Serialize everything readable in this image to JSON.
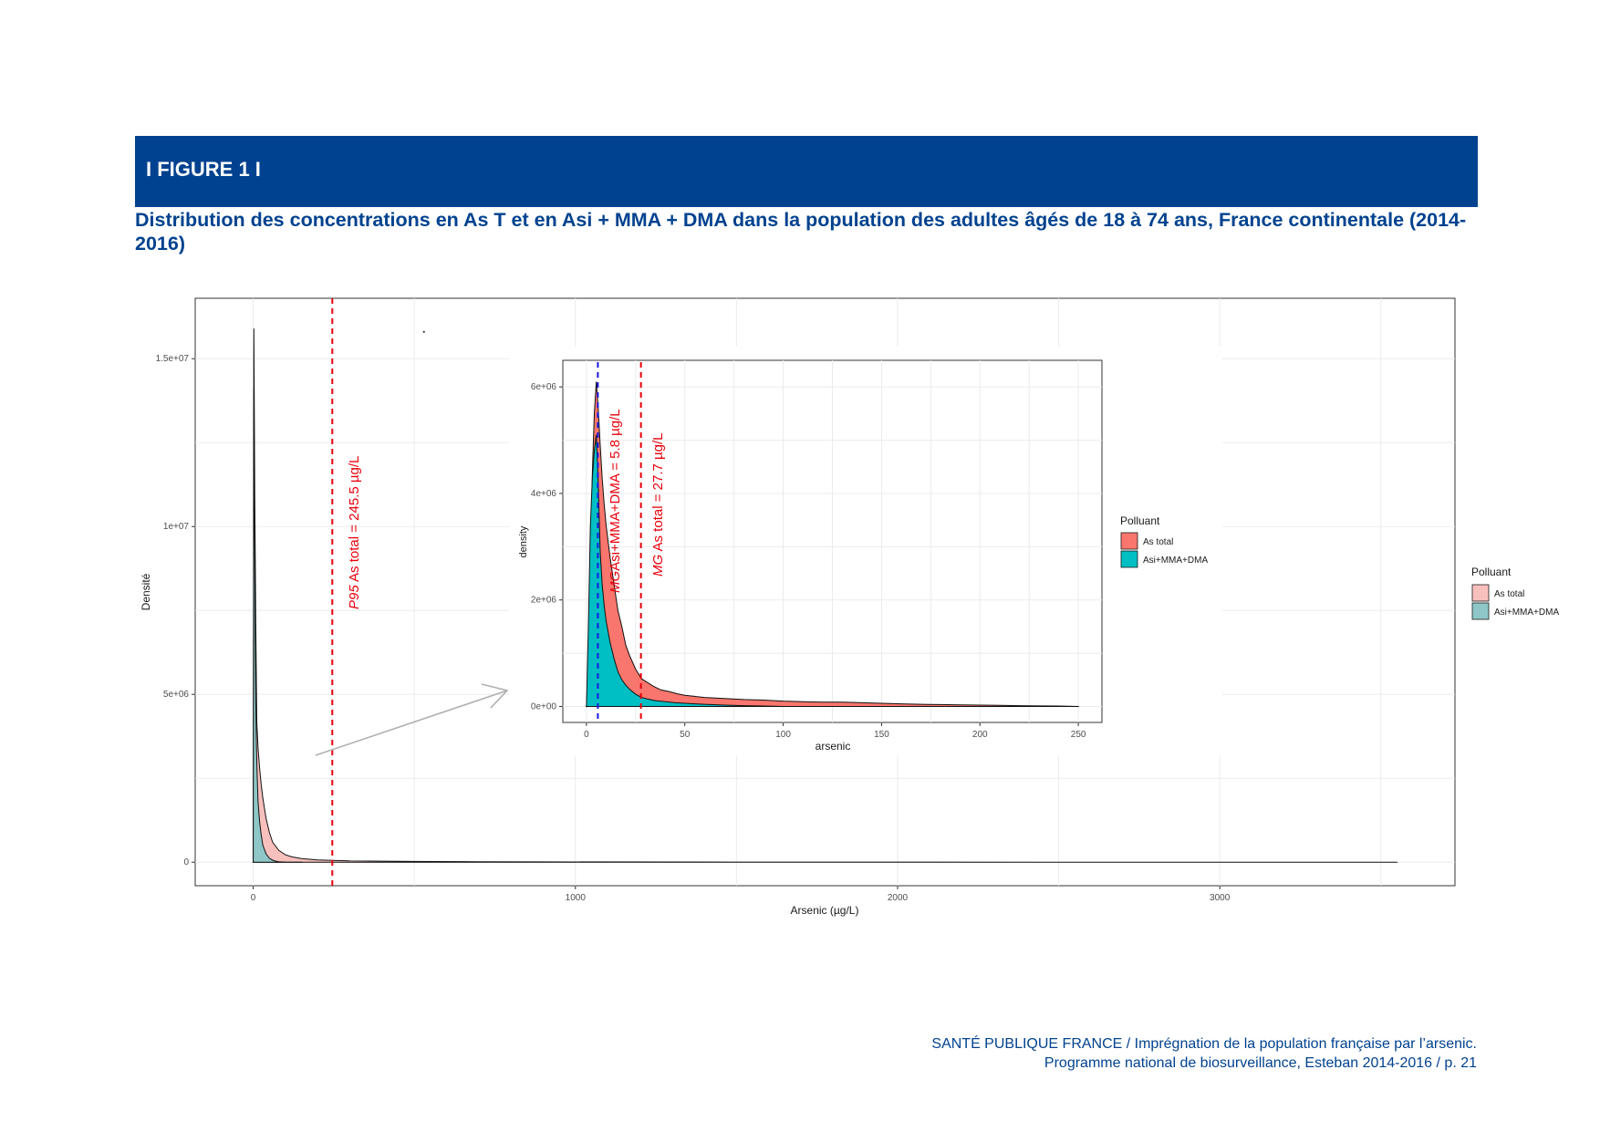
{
  "header": {
    "figure_label": "I FIGURE 1 I",
    "subtitle": "Distribution des concentrations en As T et en Asi + MMA + DMA dans la population des adultes âgés de 18 à 74 ans, France continentale (2014-2016)"
  },
  "colors": {
    "banner": "#00428f",
    "as_total_main": "#f8c0bd",
    "asi_main": "#8fc7c8",
    "as_total_inset": "#f8766d",
    "asi_inset": "#00bfc4",
    "ref_line_red": "#e8000b",
    "ref_line_blue": "#1a1adf"
  },
  "chart_data": [
    {
      "type": "area",
      "panel": "main",
      "xlabel": "Arsenic  (µg/L)",
      "ylabel": "Densité",
      "xlim": [
        -180,
        3730
      ],
      "ylim": [
        -700000,
        16800000
      ],
      "x_ticks": [
        0,
        1000,
        2000,
        3000
      ],
      "x_tick_labels": [
        "0",
        "1000",
        "2000",
        "3000"
      ],
      "y_ticks": [
        0,
        5000000,
        10000000,
        15000000
      ],
      "y_tick_labels": [
        "0",
        "5e+06",
        "1e+07",
        "1.5e+07"
      ],
      "grid": true,
      "legend": {
        "title": "Polluant",
        "position": "right",
        "entries": [
          "As total",
          "Asi+MMA+DMA"
        ]
      },
      "series": [
        {
          "name": "As total",
          "x": [
            0,
            2,
            5,
            8,
            11,
            15,
            20,
            25,
            30,
            40,
            50,
            60,
            80,
            100,
            120,
            150,
            200,
            300,
            400,
            500,
            700,
            900,
            1500,
            2000,
            2500,
            3000,
            3550
          ],
          "y": [
            0,
            15900000,
            10800000,
            7100000,
            4200000,
            3400000,
            2800000,
            2300000,
            1900000,
            1300000,
            900000,
            600000,
            350000,
            220000,
            160000,
            110000,
            70000,
            40000,
            30000,
            22000,
            15000,
            10000,
            5000,
            3000,
            1500,
            800,
            0
          ]
        },
        {
          "name": "Asi+MMA+DMA",
          "x": [
            0,
            2,
            4,
            6,
            8,
            10,
            12,
            15,
            20,
            25,
            30,
            40,
            50,
            60,
            70,
            80,
            100,
            150
          ],
          "y": [
            0,
            14100000,
            10600000,
            7200000,
            4800000,
            3500000,
            2700000,
            1800000,
            1200000,
            800000,
            500000,
            250000,
            120000,
            60000,
            30000,
            15000,
            5000,
            0
          ]
        }
      ],
      "reference_lines": [
        {
          "x": 245.5,
          "label_prefix": "P95",
          "label": " As total = 245.5 µg/L",
          "color": "#e8000b"
        }
      ],
      "stray_point": {
        "x": 530,
        "y": 15800000
      }
    },
    {
      "type": "area",
      "panel": "inset",
      "xlabel": "arsenic",
      "ylabel": "density",
      "xlim": [
        -12,
        262
      ],
      "ylim": [
        -300000,
        6500000
      ],
      "x_ticks": [
        0,
        50,
        100,
        150,
        200,
        250
      ],
      "x_tick_labels": [
        "0",
        "50",
        "100",
        "150",
        "200",
        "250"
      ],
      "y_ticks": [
        0,
        2000000,
        4000000,
        6000000
      ],
      "y_tick_labels": [
        "0e+00",
        "2e+06",
        "4e+06",
        "6e+06"
      ],
      "grid": true,
      "legend": {
        "title": "Polluant",
        "position": "right",
        "entries": [
          "As total",
          "Asi+MMA+DMA"
        ]
      },
      "series": [
        {
          "name": "As total",
          "x": [
            0,
            1,
            2,
            3,
            4,
            5,
            6,
            7,
            8,
            9,
            10,
            12,
            14,
            16,
            18,
            20,
            22,
            25,
            28,
            31,
            34,
            38,
            42,
            46,
            50,
            55,
            60,
            70,
            80,
            90,
            100,
            110,
            120,
            130,
            140,
            150,
            160,
            170,
            180,
            190,
            200,
            210,
            220,
            230,
            240,
            250
          ],
          "y": [
            0,
            900000,
            2800000,
            4400000,
            5500000,
            6100000,
            5600000,
            4900000,
            4300000,
            3800000,
            3400000,
            2800000,
            2300000,
            1800000,
            1500000,
            1150000,
            950000,
            700000,
            520000,
            450000,
            380000,
            310000,
            280000,
            240000,
            210000,
            190000,
            170000,
            150000,
            130000,
            120000,
            100000,
            90000,
            80000,
            80000,
            70000,
            60000,
            50000,
            40000,
            35000,
            30000,
            25000,
            20000,
            15000,
            10000,
            8000,
            0
          ]
        },
        {
          "name": "Asi+MMA+DMA",
          "x": [
            0,
            1,
            2,
            3,
            4,
            5,
            6,
            7,
            8,
            9,
            10,
            12,
            14,
            16,
            18,
            20,
            22,
            25,
            28,
            31,
            35,
            40,
            45,
            50,
            55,
            60,
            70,
            80,
            90,
            100
          ],
          "y": [
            0,
            1500000,
            3400000,
            4300000,
            4800000,
            5100000,
            4200000,
            2900000,
            2300000,
            1900000,
            1600000,
            1200000,
            900000,
            650000,
            500000,
            400000,
            320000,
            230000,
            170000,
            140000,
            110000,
            90000,
            70000,
            60000,
            50000,
            40000,
            25000,
            15000,
            8000,
            0
          ]
        }
      ],
      "reference_lines": [
        {
          "x": 5.8,
          "label_prefix": "MG",
          "label": "Asi+MMA+DMA = 5.8 µg/L",
          "color": "#1a1adf"
        },
        {
          "x": 27.7,
          "label_prefix": "MG",
          "label": " As total = 27.7 µg/L",
          "color": "#e8000b"
        }
      ]
    }
  ],
  "footer": {
    "line1": "SANTÉ PUBLIQUE FRANCE / Imprégnation de la population française par l’arsenic.",
    "line2": "Programme national de biosurveillance, Esteban 2014-2016 / p. 21"
  }
}
